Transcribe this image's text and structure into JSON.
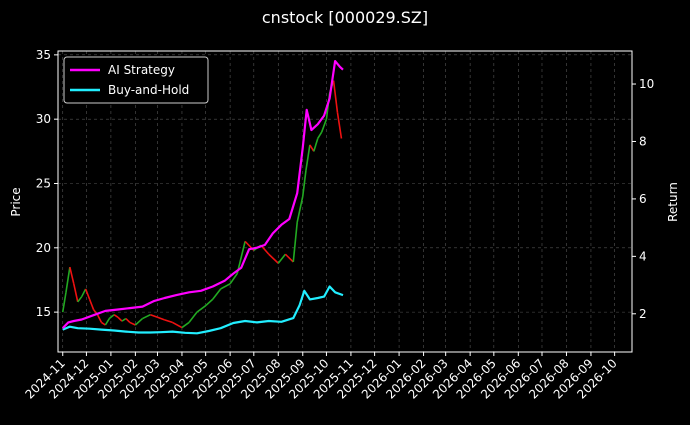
{
  "chart_data": {
    "type": "line",
    "title": "cnstock [000029.SZ]",
    "ylabel_left": "Price",
    "ylabel_right": "Return",
    "ylim_left": [
      11.9,
      35.3
    ],
    "ylim_right": [
      0.67,
      11.15
    ],
    "yticks_left": [
      15,
      20,
      25,
      30,
      35
    ],
    "yticks_right": [
      2,
      4,
      6,
      8,
      10
    ],
    "x_tick_labels": [
      "2024-11",
      "2024-12",
      "2025-01",
      "2025-02",
      "2025-03",
      "2025-04",
      "2025-05",
      "2025-06",
      "2025-07",
      "2025-08",
      "2025-09",
      "2025-10",
      "2025-11",
      "2025-12",
      "2026-01",
      "2026-02",
      "2026-03",
      "2026-04",
      "2026-05",
      "2026-06",
      "2026-07",
      "2026-08",
      "2026-09",
      "2026-10"
    ],
    "grid": true,
    "legend_position": "top-left",
    "colors": {
      "background": "#000000",
      "ai": "#ff00ff",
      "bh": "#22eeff",
      "up": "#22aa22",
      "down": "#ee1111",
      "grid": "#555555"
    },
    "series": [
      {
        "name": "AI Strategy",
        "axis": "right",
        "x": [
          "2024-11-01",
          "2024-11-08",
          "2024-11-15",
          "2024-11-25",
          "2024-12-10",
          "2024-12-25",
          "2025-01-10",
          "2025-01-25",
          "2025-02-10",
          "2025-02-25",
          "2025-03-10",
          "2025-03-25",
          "2025-04-10",
          "2025-04-25",
          "2025-05-10",
          "2025-05-25",
          "2025-06-05",
          "2025-06-15",
          "2025-06-25",
          "2025-07-05",
          "2025-07-15",
          "2025-07-25",
          "2025-08-05",
          "2025-08-15",
          "2025-08-25",
          "2025-09-01",
          "2025-09-06",
          "2025-09-12",
          "2025-09-20",
          "2025-09-28",
          "2025-10-05",
          "2025-10-12",
          "2025-10-18",
          "2025-10-22"
        ],
        "values": [
          1.5,
          1.7,
          1.75,
          1.8,
          1.95,
          2.1,
          2.15,
          2.2,
          2.25,
          2.45,
          2.55,
          2.65,
          2.75,
          2.8,
          2.95,
          3.15,
          3.4,
          3.6,
          4.25,
          4.3,
          4.4,
          4.8,
          5.1,
          5.3,
          6.2,
          7.8,
          9.1,
          8.4,
          8.6,
          8.9,
          9.5,
          10.8,
          10.6,
          10.5
        ]
      },
      {
        "name": "Buy-and-Hold",
        "axis": "right",
        "x": [
          "2024-11-01",
          "2024-11-10",
          "2024-11-20",
          "2024-12-05",
          "2024-12-20",
          "2025-01-05",
          "2025-01-20",
          "2025-02-05",
          "2025-02-20",
          "2025-03-05",
          "2025-03-20",
          "2025-04-05",
          "2025-04-20",
          "2025-05-05",
          "2025-05-20",
          "2025-06-05",
          "2025-06-20",
          "2025-07-05",
          "2025-07-20",
          "2025-08-05",
          "2025-08-20",
          "2025-08-28",
          "2025-09-03",
          "2025-09-10",
          "2025-09-20",
          "2025-09-28",
          "2025-10-05",
          "2025-10-12",
          "2025-10-22"
        ],
        "values": [
          1.45,
          1.55,
          1.5,
          1.48,
          1.45,
          1.42,
          1.38,
          1.35,
          1.35,
          1.36,
          1.38,
          1.34,
          1.32,
          1.4,
          1.5,
          1.68,
          1.75,
          1.7,
          1.75,
          1.72,
          1.85,
          2.3,
          2.8,
          2.5,
          2.55,
          2.6,
          2.95,
          2.75,
          2.65
        ]
      },
      {
        "name": "Price",
        "axis": "left",
        "x": [
          "2024-11-01",
          "2024-11-05",
          "2024-11-10",
          "2024-11-15",
          "2024-11-20",
          "2024-11-25",
          "2024-11-30",
          "2024-12-05",
          "2024-12-10",
          "2024-12-15",
          "2024-12-20",
          "2024-12-25",
          "2024-12-30",
          "2025-01-05",
          "2025-01-10",
          "2025-01-15",
          "2025-01-20",
          "2025-01-25",
          "2025-02-01",
          "2025-02-10",
          "2025-02-20",
          "2025-03-01",
          "2025-03-10",
          "2025-03-20",
          "2025-04-01",
          "2025-04-10",
          "2025-04-20",
          "2025-05-01",
          "2025-05-10",
          "2025-05-20",
          "2025-06-01",
          "2025-06-10",
          "2025-06-20",
          "2025-07-01",
          "2025-07-10",
          "2025-07-20",
          "2025-08-01",
          "2025-08-10",
          "2025-08-20",
          "2025-08-25",
          "2025-09-01",
          "2025-09-05",
          "2025-09-10",
          "2025-09-15",
          "2025-09-20",
          "2025-09-25",
          "2025-10-01",
          "2025-10-05",
          "2025-10-10",
          "2025-10-15",
          "2025-10-20"
        ],
        "values": [
          15.0,
          16.5,
          18.5,
          17.2,
          15.8,
          16.2,
          16.8,
          16.0,
          15.2,
          14.8,
          14.2,
          14.0,
          14.5,
          14.8,
          14.6,
          14.3,
          14.5,
          14.2,
          14.0,
          14.5,
          14.8,
          14.6,
          14.4,
          14.2,
          13.8,
          14.2,
          15.0,
          15.5,
          16.0,
          16.8,
          17.2,
          18.0,
          20.5,
          19.8,
          20.2,
          19.5,
          18.8,
          19.5,
          18.9,
          22.0,
          24.0,
          26.0,
          28.0,
          27.5,
          28.5,
          29.0,
          30.0,
          32.0,
          33.0,
          30.5,
          28.5
        ]
      }
    ]
  }
}
